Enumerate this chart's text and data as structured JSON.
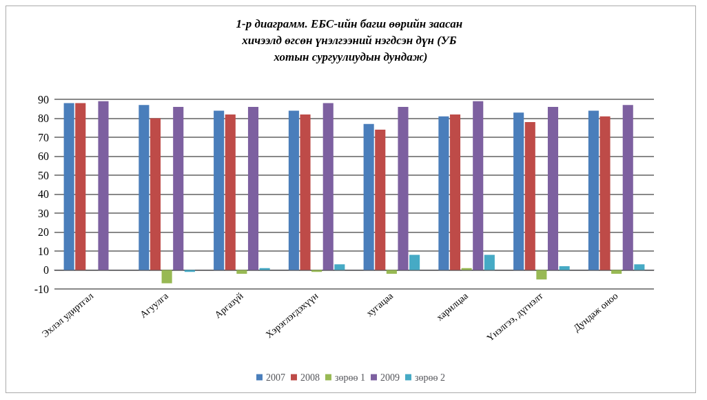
{
  "chart_data": {
    "type": "bar",
    "title": "1-р диаграмм. ЕБС-ийн багш өөрийн заасан хичээлд өгсөн үнэлгээний нэгдсэн дүн (УБ хотын сургуулиудын дундаж)",
    "categories": [
      "Эхлэл удиртгал",
      "Агуулга",
      "Аргазүй",
      "Хэрэглэгдэхүүн",
      "хугацаа",
      "харилцаа",
      "Үнэлгээ, дүгнэлт",
      "Дундаж оноо"
    ],
    "series": [
      {
        "name": "2007",
        "color": "#4a7ebb",
        "values": [
          88,
          87,
          84,
          84,
          77,
          81,
          83,
          84
        ]
      },
      {
        "name": "2008",
        "color": "#be4b48",
        "values": [
          88,
          80,
          82,
          82,
          74,
          82,
          78,
          81
        ]
      },
      {
        "name": "зөрөө 1",
        "color": "#98b954",
        "values": [
          0,
          -7,
          -2,
          -1,
          -2,
          1,
          -5,
          -2
        ]
      },
      {
        "name": "2009",
        "color": "#7d60a0",
        "values": [
          89,
          86,
          86,
          88,
          86,
          89,
          86,
          87
        ]
      },
      {
        "name": "зөрөө 2",
        "color": "#46aac5",
        "values": [
          0,
          -1,
          1,
          3,
          8,
          8,
          2,
          3
        ]
      }
    ],
    "ylim": [
      -10,
      90
    ],
    "yticks": [
      -10,
      0,
      10,
      20,
      30,
      40,
      50,
      60,
      70,
      80,
      90
    ],
    "grid": "y",
    "legend": "bottom"
  }
}
